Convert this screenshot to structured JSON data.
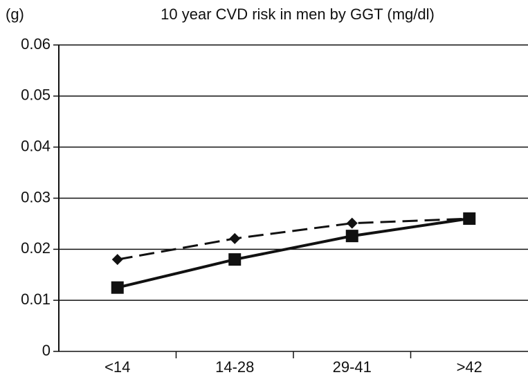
{
  "chart_data": {
    "type": "line",
    "panel_label": "(g)",
    "title": "10 year CVD risk in men by GGT (mg/dl)",
    "categories": [
      "<14",
      "14-28",
      "29-41",
      ">42"
    ],
    "series": [
      {
        "color": "#111111",
        "dashed": true,
        "marker": "diamond",
        "values": [
          0.018,
          0.0221,
          0.0251,
          0.026
        ]
      },
      {
        "color": "#111111",
        "dashed": false,
        "marker": "square",
        "values": [
          0.0125,
          0.018,
          0.0226,
          0.026
        ]
      }
    ],
    "ylim": [
      0,
      0.06
    ],
    "yticks": [
      0,
      0.01,
      0.02,
      0.03,
      0.04,
      0.05,
      0.06
    ],
    "grid": true
  }
}
